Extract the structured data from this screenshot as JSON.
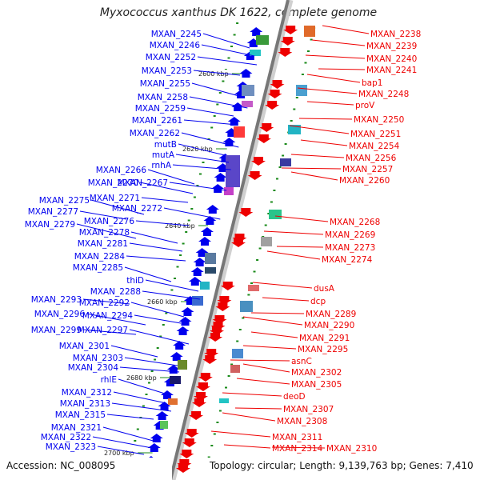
{
  "title": "Myxococcus xanthus DK 1622, complete genome",
  "accession": "Accession: NC_008095",
  "topology": "Topology: circular; Length: 9,139,763 bp; Genes: 7,410",
  "colors": {
    "left_strand": "#0000ee",
    "right_strand": "#ee0000",
    "backbone": "#777777",
    "tick": "#1a8a1a"
  },
  "kbp_markers": [
    "2600 kbp",
    "2620 kbp",
    "2640 kbp",
    "2660 kbp",
    "2680 kbp",
    "2700 kbp"
  ],
  "left_labels": [
    "MXAN_2245",
    "MXAN_2246",
    "MXAN_2252",
    "MXAN_2253",
    "MXAN_2255",
    "MXAN_2258",
    "MXAN_2259",
    "MXAN_2261",
    "MXAN_2262",
    "mutB",
    "mutA",
    "rnhA",
    "MXAN_2266",
    "MXAN_2270",
    "MXAN_2267",
    "MXAN_2271",
    "MXAN_2275",
    "MXAN_2272",
    "MXAN_2277",
    "MXAN_2276",
    "MXAN_2279",
    "MXAN_2278",
    "MXAN_2281",
    "MXAN_2284",
    "MXAN_2285",
    "thiD",
    "MXAN_2288",
    "MXAN_2293",
    "MXAN_2292",
    "MXAN_2296",
    "MXAN_2294",
    "MXAN_2299",
    "MXAN_2297",
    "MXAN_2301",
    "MXAN_2303",
    "MXAN_2304",
    "rhlE",
    "MXAN_2312",
    "MXAN_2313",
    "MXAN_2315",
    "MXAN_2321",
    "MXAN_2322",
    "MXAN_2323"
  ],
  "right_labels": [
    "MXAN_2238",
    "MXAN_2239",
    "MXAN_2240",
    "MXAN_2241",
    "bap1",
    "MXAN_2248",
    "proV",
    "MXAN_2250",
    "MXAN_2251",
    "MXAN_2254",
    "MXAN_2256",
    "MXAN_2257",
    "MXAN_2260",
    "MXAN_2268",
    "MXAN_2269",
    "MXAN_2273",
    "MXAN_2274",
    "dusA",
    "dcp",
    "MXAN_2289",
    "MXAN_2290",
    "MXAN_2291",
    "MXAN_2295",
    "asnC",
    "MXAN_2302",
    "MXAN_2305",
    "deoD",
    "MXAN_2307",
    "MXAN_2308",
    "MXAN_2311",
    "MXAN_2314",
    "MXAN_2310"
  ]
}
